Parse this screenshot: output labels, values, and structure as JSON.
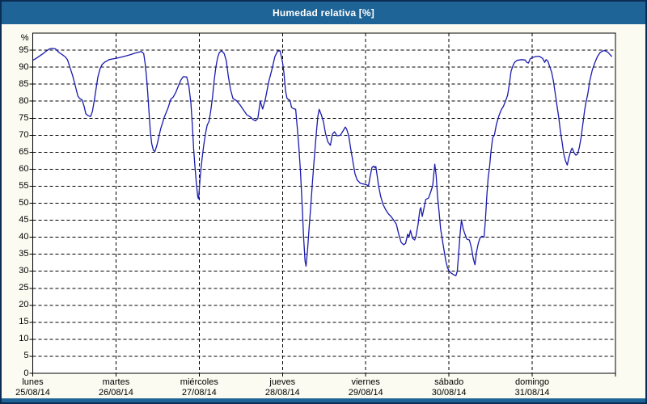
{
  "title": "Humedad relativa [%]",
  "colors": {
    "titlebar": "#1e6496",
    "titlebar_text": "#ffffff",
    "panel_background": "#fbfbf1",
    "plot_background": "#ffffff",
    "grid": "#000000",
    "frame": "#000000",
    "line": "#1a1aae",
    "outer_border": "#0b2d55"
  },
  "chart_data": {
    "type": "line",
    "title": "Humedad relativa [%]",
    "xlabel": "",
    "ylabel": "%",
    "ylim": [
      0,
      100
    ],
    "yticks": [
      0,
      5,
      10,
      15,
      20,
      25,
      30,
      35,
      40,
      45,
      50,
      55,
      60,
      65,
      70,
      75,
      80,
      85,
      90,
      95
    ],
    "grid": "dashed",
    "legend_position": "none",
    "x_axis": {
      "unit": "hours since Monday 00:00",
      "range_hours": [
        0,
        168
      ],
      "days": [
        {
          "name": "lunes",
          "date": "25/08/14"
        },
        {
          "name": "martes",
          "date": "26/08/14"
        },
        {
          "name": "miércoles",
          "date": "27/08/14"
        },
        {
          "name": "jueves",
          "date": "28/08/14"
        },
        {
          "name": "viernes",
          "date": "29/08/14"
        },
        {
          "name": "sábado",
          "date": "30/08/14"
        },
        {
          "name": "domingo",
          "date": "31/08/14"
        }
      ]
    },
    "series": [
      {
        "name": "Humedad relativa",
        "color": "#1a1aae",
        "points": [
          [
            0,
            92
          ],
          [
            1,
            92.6
          ],
          [
            2,
            93.3
          ],
          [
            3,
            94
          ],
          [
            4,
            94.8
          ],
          [
            4.7,
            95.3
          ],
          [
            5.5,
            95.5
          ],
          [
            6.5,
            95.4
          ],
          [
            7.6,
            94.3
          ],
          [
            8.6,
            93.6
          ],
          [
            9.4,
            93
          ],
          [
            10,
            92.2
          ],
          [
            10.6,
            90.3
          ],
          [
            11.5,
            87.5
          ],
          [
            12.2,
            84.8
          ],
          [
            13,
            81.5
          ],
          [
            13.5,
            80.8
          ],
          [
            14.2,
            80.4
          ],
          [
            14.8,
            78.5
          ],
          [
            15.3,
            76.3
          ],
          [
            16,
            75.7
          ],
          [
            16.7,
            75.5
          ],
          [
            17.2,
            77
          ],
          [
            17.8,
            80.5
          ],
          [
            18.3,
            84
          ],
          [
            18.8,
            87.2
          ],
          [
            19.4,
            89.5
          ],
          [
            20,
            90.8
          ],
          [
            20.8,
            91.5
          ],
          [
            22,
            92.2
          ],
          [
            23,
            92.4
          ],
          [
            24,
            92.6
          ],
          [
            25,
            92.8
          ],
          [
            26.5,
            93.2
          ],
          [
            28,
            93.6
          ],
          [
            29.5,
            94.1
          ],
          [
            30.5,
            94.4
          ],
          [
            31.3,
            94.6
          ],
          [
            32,
            94
          ],
          [
            32.4,
            91
          ],
          [
            32.8,
            87
          ],
          [
            33.1,
            83
          ],
          [
            33.5,
            77
          ],
          [
            33.9,
            71
          ],
          [
            34.3,
            67.5
          ],
          [
            34.8,
            65.5
          ],
          [
            35.2,
            65.2
          ],
          [
            35.8,
            67
          ],
          [
            36.9,
            72
          ],
          [
            38,
            75.5
          ],
          [
            39,
            78
          ],
          [
            39.8,
            80.6
          ],
          [
            40.5,
            81.2
          ],
          [
            41.2,
            82.5
          ],
          [
            42,
            84.5
          ],
          [
            42.7,
            86.2
          ],
          [
            43.4,
            87.2
          ],
          [
            44.4,
            87.1
          ],
          [
            45,
            84.5
          ],
          [
            45.6,
            79.3
          ],
          [
            46,
            73
          ],
          [
            46.4,
            65.8
          ],
          [
            46.8,
            60.3
          ],
          [
            47.2,
            55.6
          ],
          [
            47.6,
            51.8
          ],
          [
            47.8,
            51.3
          ],
          [
            48,
            54
          ],
          [
            48.3,
            58
          ],
          [
            48.8,
            63
          ],
          [
            49.3,
            67
          ],
          [
            49.8,
            70.5
          ],
          [
            50.3,
            73
          ],
          [
            50.8,
            74
          ],
          [
            51.3,
            77
          ],
          [
            51.8,
            81
          ],
          [
            52.3,
            86
          ],
          [
            52.8,
            90
          ],
          [
            53.3,
            92.8
          ],
          [
            53.8,
            94.3
          ],
          [
            54.5,
            94.8
          ],
          [
            55.2,
            94
          ],
          [
            55.8,
            91.9
          ],
          [
            56.4,
            87.2
          ],
          [
            57,
            83.5
          ],
          [
            57.7,
            80.8
          ],
          [
            58.7,
            80.2
          ],
          [
            59.7,
            79
          ],
          [
            60.7,
            77.5
          ],
          [
            61.7,
            76
          ],
          [
            62.7,
            75.4
          ],
          [
            63.5,
            74.6
          ],
          [
            64.2,
            74.2
          ],
          [
            64.9,
            74.9
          ],
          [
            65.6,
            80
          ],
          [
            66.3,
            77.7
          ],
          [
            67.1,
            80.8
          ],
          [
            68,
            85.5
          ],
          [
            69,
            89.5
          ],
          [
            69.8,
            93.1
          ],
          [
            70.6,
            94.7
          ],
          [
            71.3,
            94.8
          ],
          [
            72,
            91.5
          ],
          [
            72.4,
            88.5
          ],
          [
            72.9,
            83
          ],
          [
            73.3,
            80.8
          ],
          [
            74.2,
            80.2
          ],
          [
            74.6,
            78.2
          ],
          [
            75.2,
            77.8
          ],
          [
            75.8,
            77.6
          ],
          [
            76.2,
            73
          ],
          [
            76.7,
            67
          ],
          [
            77.2,
            59
          ],
          [
            77.7,
            49
          ],
          [
            78.1,
            40
          ],
          [
            78.5,
            33
          ],
          [
            78.8,
            31.5
          ],
          [
            79.2,
            36
          ],
          [
            79.7,
            43
          ],
          [
            80.2,
            50
          ],
          [
            80.7,
            57
          ],
          [
            81.2,
            63.5
          ],
          [
            81.7,
            70
          ],
          [
            82.2,
            75.5
          ],
          [
            82.6,
            77.6
          ],
          [
            83.2,
            76
          ],
          [
            83.8,
            74
          ],
          [
            84.4,
            70.5
          ],
          [
            85.1,
            68
          ],
          [
            85.8,
            67
          ],
          [
            86.4,
            70.3
          ],
          [
            87,
            71
          ],
          [
            87.7,
            69.8
          ],
          [
            88.7,
            70
          ],
          [
            89.6,
            71.5
          ],
          [
            90.1,
            72.4
          ],
          [
            90.5,
            71.8
          ],
          [
            91.1,
            69.8
          ],
          [
            91.7,
            65.8
          ],
          [
            92.3,
            62.3
          ],
          [
            92.9,
            58.7
          ],
          [
            93.5,
            56.9
          ],
          [
            94.4,
            55.9
          ],
          [
            95.5,
            55.6
          ],
          [
            96.3,
            55.4
          ],
          [
            96.8,
            55.1
          ],
          [
            97.3,
            58
          ],
          [
            97.8,
            60.5
          ],
          [
            98.3,
            60.9
          ],
          [
            98.6,
            60.4
          ],
          [
            98.9,
            60.8
          ],
          [
            99.3,
            58
          ],
          [
            99.7,
            55.1
          ],
          [
            100.3,
            52
          ],
          [
            101,
            49.6
          ],
          [
            101.8,
            48
          ],
          [
            102.6,
            46.8
          ],
          [
            103.3,
            46.1
          ],
          [
            104,
            45.1
          ],
          [
            104.8,
            43.9
          ],
          [
            105.5,
            40.9
          ],
          [
            106.2,
            38.5
          ],
          [
            106.9,
            37.8
          ],
          [
            107.5,
            38.2
          ],
          [
            108.1,
            40.9
          ],
          [
            108.5,
            40.1
          ],
          [
            108.9,
            42
          ],
          [
            109.5,
            39.7
          ],
          [
            110.1,
            39.2
          ],
          [
            110.5,
            40.3
          ],
          [
            111.1,
            43.9
          ],
          [
            111.6,
            48
          ],
          [
            111.9,
            48.7
          ],
          [
            112.3,
            46.1
          ],
          [
            112.7,
            48
          ],
          [
            113.3,
            51.1
          ],
          [
            114.1,
            51.5
          ],
          [
            114.7,
            53.2
          ],
          [
            115.3,
            55.1
          ],
          [
            115.9,
            61.5
          ],
          [
            116.3,
            58.2
          ],
          [
            116.7,
            52
          ],
          [
            117.1,
            48
          ],
          [
            117.6,
            42.5
          ],
          [
            118.1,
            39.2
          ],
          [
            118.6,
            36.1
          ],
          [
            119.1,
            33
          ],
          [
            119.6,
            31
          ],
          [
            120,
            30.2
          ],
          [
            120.6,
            29.5
          ],
          [
            121.3,
            29
          ],
          [
            122,
            28.7
          ],
          [
            122.4,
            30
          ],
          [
            122.8,
            35.4
          ],
          [
            123.2,
            41
          ],
          [
            123.6,
            45.1
          ],
          [
            124.1,
            42.5
          ],
          [
            124.6,
            40.9
          ],
          [
            125.2,
            39.4
          ],
          [
            125.9,
            39.2
          ],
          [
            126.5,
            36.8
          ],
          [
            127,
            33.7
          ],
          [
            127.5,
            31.9
          ],
          [
            127.9,
            35.4
          ],
          [
            128.4,
            38
          ],
          [
            128.9,
            39.7
          ],
          [
            129.5,
            40.3
          ],
          [
            130.1,
            40
          ],
          [
            130.5,
            45
          ],
          [
            130.9,
            52
          ],
          [
            131.3,
            57.5
          ],
          [
            131.7,
            60.6
          ],
          [
            132.1,
            65
          ],
          [
            132.6,
            69.3
          ],
          [
            133.1,
            70
          ],
          [
            133.7,
            73.3
          ],
          [
            134.4,
            75.7
          ],
          [
            135.1,
            77.5
          ],
          [
            135.7,
            78.5
          ],
          [
            136.3,
            80
          ],
          [
            136.9,
            81.7
          ],
          [
            137.4,
            85
          ],
          [
            137.9,
            88.8
          ],
          [
            138.4,
            90.3
          ],
          [
            138.9,
            91.4
          ],
          [
            139.6,
            92
          ],
          [
            141,
            92.2
          ],
          [
            142,
            92.1
          ],
          [
            142.4,
            91.4
          ],
          [
            142.9,
            91.2
          ],
          [
            143.4,
            92.4
          ],
          [
            144,
            92.8
          ],
          [
            145,
            93.1
          ],
          [
            146,
            93.2
          ],
          [
            147,
            92.6
          ],
          [
            147.6,
            91.4
          ],
          [
            148,
            92.2
          ],
          [
            148.5,
            91.8
          ],
          [
            149,
            90.3
          ],
          [
            149.6,
            88.5
          ],
          [
            150.1,
            86
          ],
          [
            150.6,
            82.5
          ],
          [
            151.1,
            79
          ],
          [
            151.6,
            75.5
          ],
          [
            152.1,
            71.5
          ],
          [
            152.6,
            68
          ],
          [
            153.1,
            64.5
          ],
          [
            153.6,
            62.5
          ],
          [
            154.1,
            61.2
          ],
          [
            154.6,
            63.5
          ],
          [
            155.1,
            65.3
          ],
          [
            155.5,
            66.2
          ],
          [
            156.1,
            64.8
          ],
          [
            156.6,
            64.1
          ],
          [
            157.1,
            64.5
          ],
          [
            157.6,
            66.5
          ],
          [
            158.1,
            69.3
          ],
          [
            158.6,
            73.3
          ],
          [
            159.1,
            77.2
          ],
          [
            159.5,
            79.6
          ],
          [
            160,
            82
          ],
          [
            160.6,
            86
          ],
          [
            161.3,
            89.1
          ],
          [
            162.1,
            91.4
          ],
          [
            162.8,
            93.1
          ],
          [
            163.6,
            94.3
          ],
          [
            164.4,
            94.8
          ],
          [
            165.1,
            94.8
          ],
          [
            165.9,
            94.3
          ],
          [
            166.5,
            93.6
          ],
          [
            167,
            93.1
          ]
        ]
      }
    ]
  }
}
